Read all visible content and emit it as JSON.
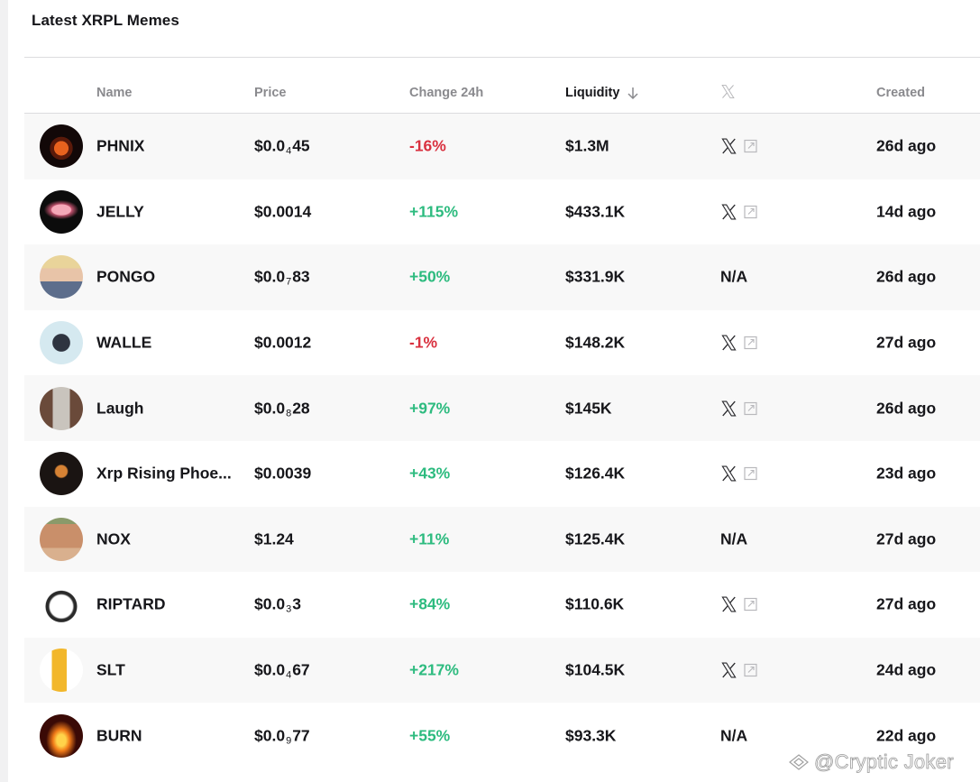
{
  "page": {
    "title": "Latest XRPL Memes"
  },
  "table": {
    "columns": {
      "name": "Name",
      "price": "Price",
      "change": "Change 24h",
      "liquidity": "Liquidity",
      "liquidity_sort_icon": "arrow-down-icon",
      "social_icon": "x-logo-icon",
      "created": "Created"
    },
    "rows": [
      {
        "name": "PHNIX",
        "avatar": "phoenix-avatar",
        "price_prefix": "$0.0",
        "price_sub": "4",
        "price_suffix": "45",
        "change": "-16%",
        "direction": "neg",
        "liquidity": "$1.3M",
        "social": "x",
        "created": "26d ago"
      },
      {
        "name": "JELLY",
        "avatar": "jellyfish-avatar",
        "price_prefix": "$0.0014",
        "price_sub": "",
        "price_suffix": "",
        "change": "+115%",
        "direction": "pos",
        "liquidity": "$433.1K",
        "social": "x",
        "created": "14d ago"
      },
      {
        "name": "PONGO",
        "avatar": "man-portrait-avatar",
        "price_prefix": "$0.0",
        "price_sub": "7",
        "price_suffix": "83",
        "change": "+50%",
        "direction": "pos",
        "liquidity": "$331.9K",
        "social": "N/A",
        "created": "26d ago"
      },
      {
        "name": "WALLE",
        "avatar": "dog-avatar",
        "price_prefix": "$0.0012",
        "price_sub": "",
        "price_suffix": "",
        "change": "-1%",
        "direction": "neg",
        "liquidity": "$148.2K",
        "social": "x",
        "created": "27d ago"
      },
      {
        "name": "Laugh",
        "avatar": "figure-avatar",
        "price_prefix": "$0.0",
        "price_sub": "8",
        "price_suffix": "28",
        "change": "+97%",
        "direction": "pos",
        "liquidity": "$145K",
        "social": "x",
        "created": "26d ago"
      },
      {
        "name": "Xrp Rising Phoe...",
        "avatar": "xrp-phoenix-avatar",
        "price_prefix": "$0.0039",
        "price_sub": "",
        "price_suffix": "",
        "change": "+43%",
        "direction": "pos",
        "liquidity": "$126.4K",
        "social": "x",
        "created": "23d ago"
      },
      {
        "name": "NOX",
        "avatar": "animal-avatar",
        "price_prefix": "$1.24",
        "price_sub": "",
        "price_suffix": "",
        "change": "+11%",
        "direction": "pos",
        "liquidity": "$125.4K",
        "social": "N/A",
        "created": "27d ago"
      },
      {
        "name": "RIPTARD",
        "avatar": "cartoon-face-avatar",
        "price_prefix": "$0.0",
        "price_sub": "3",
        "price_suffix": "3",
        "change": "+84%",
        "direction": "pos",
        "liquidity": "$110.6K",
        "social": "x",
        "created": "27d ago"
      },
      {
        "name": "SLT",
        "avatar": "banana-avatar",
        "price_prefix": "$0.0",
        "price_sub": "4",
        "price_suffix": "67",
        "change": "+217%",
        "direction": "pos",
        "liquidity": "$104.5K",
        "social": "x",
        "created": "24d ago"
      },
      {
        "name": "BURN",
        "avatar": "fire-avatar",
        "price_prefix": "$0.0",
        "price_sub": "9",
        "price_suffix": "77",
        "change": "+55%",
        "direction": "pos",
        "liquidity": "$93.3K",
        "social": "N/A",
        "created": "22d ago"
      }
    ]
  },
  "colors": {
    "negative": "#d9313f",
    "positive": "#2dbb7f",
    "header_text": "#8a8a8e",
    "row_alt_bg": "#f8f8f8"
  },
  "watermark": {
    "text": "@Cryptic Joker"
  }
}
